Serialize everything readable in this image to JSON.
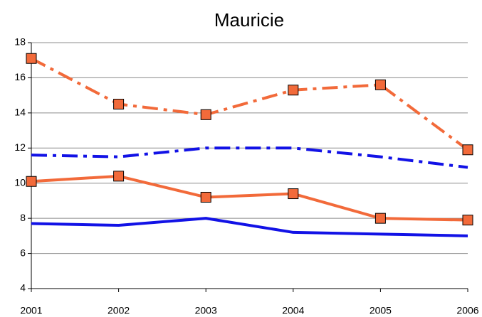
{
  "chart_data": {
    "type": "line",
    "title": "Mauricie",
    "x": [
      2001,
      2002,
      2003,
      2004,
      2005,
      2006
    ],
    "xlim": [
      2001,
      2006
    ],
    "xticks": [
      2001,
      2002,
      2003,
      2004,
      2005,
      2006
    ],
    "ylim": [
      4,
      18
    ],
    "yticks": [
      4,
      6,
      8,
      10,
      12,
      14,
      16,
      18
    ],
    "grid": true,
    "series": [
      {
        "color": "#f26a3a",
        "dash": "dashdot",
        "marker": "square",
        "values": [
          17.1,
          14.5,
          13.9,
          15.3,
          15.6,
          11.9
        ]
      },
      {
        "color": "#1212e6",
        "dash": "dashdot",
        "marker": "none",
        "values": [
          11.6,
          11.5,
          12.0,
          12.0,
          11.5,
          10.9
        ]
      },
      {
        "color": "#f26a3a",
        "dash": "solid",
        "marker": "square",
        "values": [
          10.1,
          10.4,
          9.2,
          9.4,
          8.0,
          7.9
        ]
      },
      {
        "color": "#1212e6",
        "dash": "solid",
        "marker": "none",
        "values": [
          7.7,
          7.6,
          8.0,
          7.2,
          7.1,
          7.0
        ]
      }
    ]
  }
}
